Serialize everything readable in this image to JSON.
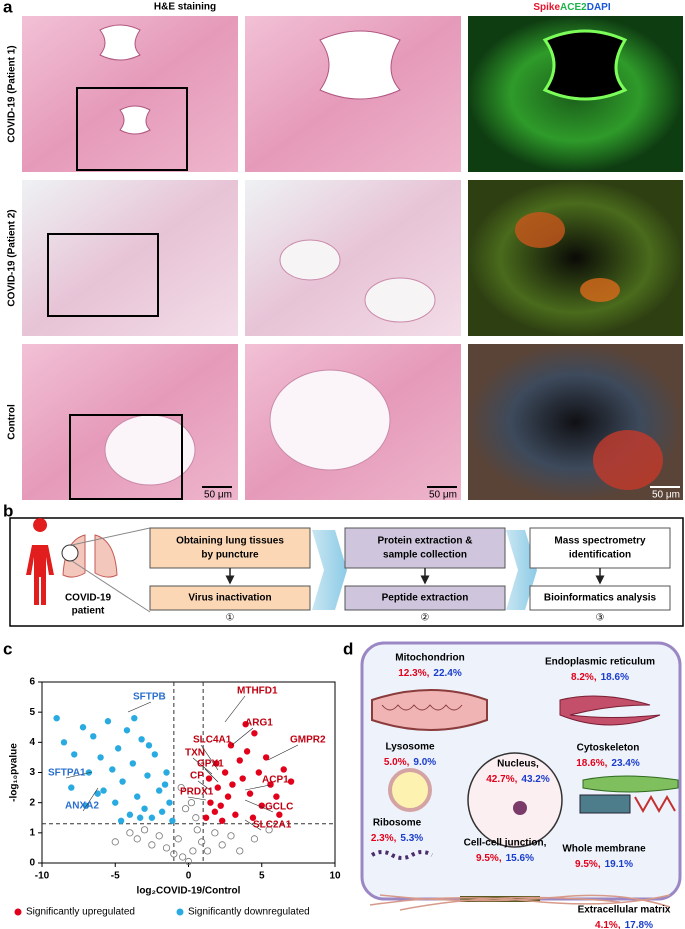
{
  "panel_a": {
    "label": "a",
    "title": "H&E staining",
    "stains": [
      {
        "name": "Spike",
        "color": "#e8132b"
      },
      {
        "name": "ACE2",
        "color": "#1db34a"
      },
      {
        "name": "DAPI",
        "color": "#1a56d8"
      }
    ],
    "rows": [
      "COVID-19 (Patient 1)",
      "COVID-19 (Patient 2)",
      "Control"
    ],
    "scale_bars": [
      "50 μm",
      "50 μm",
      "50 μm"
    ]
  },
  "panel_b": {
    "label": "b",
    "patient": [
      "COVID-19",
      "patient"
    ],
    "steps": [
      {
        "top": [
          "Obtaining lung tissues",
          "by puncture"
        ],
        "bottom": "Virus inactivation",
        "number": "①",
        "color": "#fbd7b5"
      },
      {
        "top": [
          "Protein extraction &",
          "sample collection"
        ],
        "bottom": "Peptide extraction",
        "number": "②",
        "color": "#cfc6dd"
      },
      {
        "top": [
          "Mass spectrometry",
          "identification"
        ],
        "bottom": "Bioinformatics analysis",
        "number": "③",
        "color": "#ffffff"
      }
    ]
  },
  "panel_c": {
    "label": "c",
    "x_label": "log₂COVID-19/Control",
    "y_label": "-log₁₀pvalue",
    "xlim": [
      -10,
      10
    ],
    "xticks": [
      -10,
      -5,
      0,
      5,
      10
    ],
    "ylim": [
      0,
      6
    ],
    "yticks": [
      0,
      1,
      2,
      3,
      4,
      5,
      6
    ],
    "thresholds": {
      "x": [
        -1,
        1
      ],
      "y": 1.3
    },
    "series": [
      {
        "name": "Significantly upregulated",
        "color": "#e3001b",
        "x": [
          1.2,
          1.5,
          1.8,
          2,
          2.2,
          2.5,
          2.7,
          3,
          3.2,
          3.5,
          3.7,
          4,
          4.2,
          4.5,
          4.8,
          5,
          5.3,
          5.6,
          6,
          6.5,
          7,
          1.4,
          2.9,
          3.9,
          2.3,
          4.4,
          1.9,
          6.2
        ],
        "y": [
          1.5,
          2,
          1.7,
          2.5,
          1.9,
          3,
          2.2,
          2.6,
          1.6,
          3.4,
          2.8,
          3.7,
          2.3,
          4.3,
          3,
          1.9,
          3.5,
          2.6,
          2.2,
          3.1,
          2.7,
          2.8,
          3.9,
          4.6,
          1.4,
          1.5,
          3.3,
          1.6
        ]
      },
      {
        "name": "Significantly downregulated",
        "color": "#29abe2",
        "x": [
          -9,
          -8.5,
          -7.8,
          -7.2,
          -6.8,
          -6.5,
          -6,
          -5.8,
          -5.5,
          -5.2,
          -5,
          -4.8,
          -4.5,
          -4.2,
          -4,
          -3.8,
          -3.5,
          -3.2,
          -3,
          -2.8,
          -2.5,
          -2.3,
          -2,
          -1.8,
          -1.5,
          -1.3,
          -1.1,
          -3.7,
          -6.2,
          -7,
          -8,
          -4.6,
          -2.7,
          -1.6,
          -3.3
        ],
        "y": [
          4.8,
          4,
          3.6,
          4.5,
          3,
          4.2,
          3.5,
          2.4,
          4.7,
          3.1,
          2,
          3.8,
          2.7,
          4.4,
          1.6,
          3.3,
          2.2,
          4.1,
          1.8,
          2.9,
          1.5,
          3.6,
          2.4,
          1.7,
          3,
          2,
          1.4,
          4.8,
          2.3,
          1.9,
          2.5,
          1.4,
          3.9,
          2.6,
          1.5
        ]
      },
      {
        "color": "#777777",
        "x": [
          -4,
          -3.5,
          -3,
          -2.5,
          -2,
          -1.5,
          -1,
          -0.7,
          -0.4,
          0,
          0.3,
          0.6,
          0.9,
          1.3,
          1.8,
          2.3,
          2.9,
          3.5,
          4.5,
          -0.2,
          0.2,
          -0.5,
          0.5,
          -5,
          5.5
        ],
        "y": [
          1,
          0.8,
          1.1,
          0.6,
          0.9,
          0.5,
          0.3,
          0.8,
          0.2,
          0.05,
          0.4,
          1.1,
          0.7,
          0.4,
          1,
          0.6,
          0.9,
          0.4,
          0.8,
          1.8,
          2,
          2.5,
          1.5,
          0.7,
          1.1
        ]
      }
    ],
    "genes_up": [
      "MTHFD1",
      "ARG1",
      "GMPR2",
      "SLC4A1",
      "TXN",
      "GPX1",
      "CP",
      "ACP1",
      "PRDX1",
      "GCLC",
      "SLC2A1"
    ],
    "genes_down": [
      "SFTPB",
      "SFTPA1",
      "ANXA2"
    ]
  },
  "panel_d": {
    "label": "d",
    "separator": ",",
    "up_color": "#e3001b",
    "down_color": "#1a3ccc",
    "compartments": [
      {
        "name": "Mitochondrion",
        "values": [
          "12.3%",
          "22.4%"
        ]
      },
      {
        "name": "Endoplasmic reticulum",
        "values": [
          "8.2%",
          "18.6%"
        ]
      },
      {
        "name": "Lysosome",
        "values": [
          "5.0%",
          "9.0%"
        ]
      },
      {
        "name": "Nucleus,",
        "values": [
          "42.7%",
          "43.2%"
        ]
      },
      {
        "name": "Cytoskeleton",
        "values": [
          "18.6%",
          "23.4%"
        ]
      },
      {
        "name": "Ribosome",
        "values": [
          "2.3%",
          "5.3%"
        ]
      },
      {
        "name": "Cell-cell junction,",
        "values": [
          "9.5%",
          "15.6%"
        ]
      },
      {
        "name": "Whole membrane",
        "values": [
          "9.5%",
          "19.1%"
        ]
      },
      {
        "name": "Extracellular matrix",
        "values": [
          "4.1%",
          "17.8%"
        ]
      }
    ]
  }
}
